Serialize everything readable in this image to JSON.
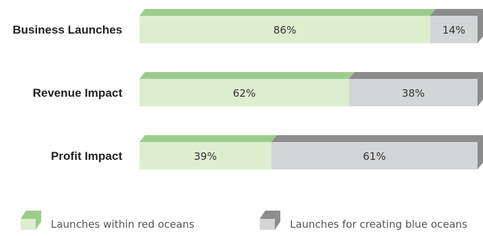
{
  "chart_data": {
    "type": "bar",
    "stacked": true,
    "orientation": "horizontal",
    "categories": [
      "Business Launches",
      "Revenue Impact",
      "Profit Impact"
    ],
    "series": [
      {
        "name": "Launches within red oceans",
        "values": [
          86,
          62,
          39
        ],
        "labels": [
          "86%",
          "62%",
          "39%"
        ],
        "face_color": "#ddeecf",
        "top_color": "#9ccc8d"
      },
      {
        "name": "Launches for creating blue oceans",
        "values": [
          14,
          38,
          61
        ],
        "labels": [
          "14%",
          "38%",
          "61%"
        ],
        "face_color": "#d4d5d6",
        "top_color": "#8c8c8c"
      }
    ],
    "xlim": [
      0,
      100
    ],
    "grid": false,
    "legend_position": "bottom"
  }
}
